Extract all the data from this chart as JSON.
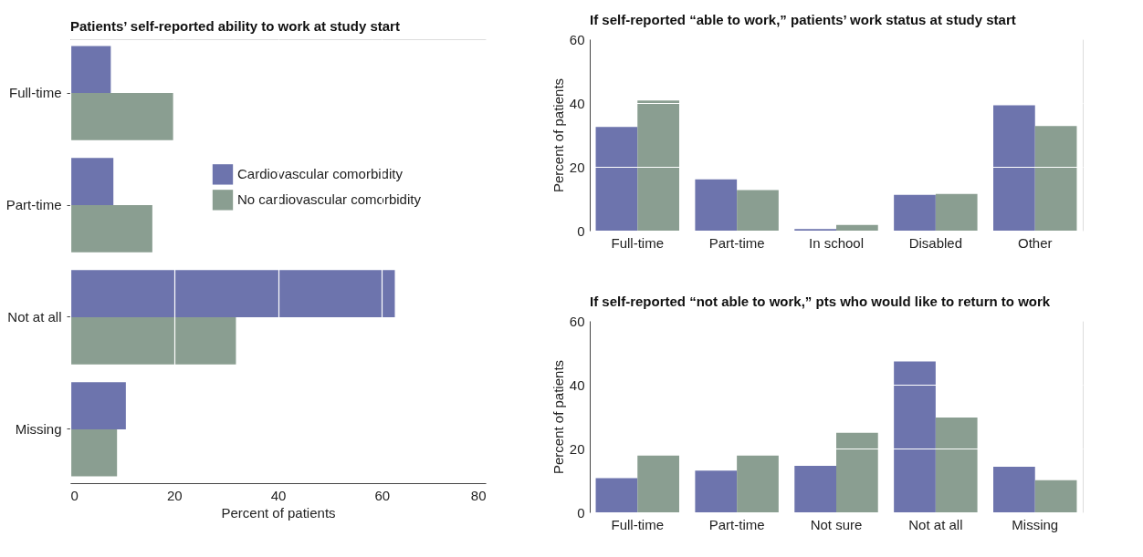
{
  "chart_data": [
    {
      "type": "bar",
      "orientation": "horizontal",
      "title": "Patients’ self-reported ability to work at study start",
      "xlabel": "Percent of patients",
      "categories": [
        "Full-time",
        "Part-time",
        "Not at all",
        "Missing"
      ],
      "xlim": [
        0,
        80
      ],
      "xticks": [
        0,
        20,
        40,
        60,
        80
      ],
      "grid": true,
      "legend": "top right",
      "series": [
        {
          "name": "Cardiovascular comorbidity",
          "color": "#6d74ad",
          "values": [
            7.8,
            8.3,
            62.5,
            10.7
          ]
        },
        {
          "name": "No cardiovascular comorbidity",
          "color": "#8a9e91",
          "values": [
            19.8,
            15.8,
            31.9,
            9.0
          ]
        }
      ]
    },
    {
      "type": "bar",
      "title": "If self-reported “able to work,” patients’ work status at study start",
      "ylabel": "Percent of patients",
      "categories": [
        "Full-time",
        "Part-time",
        "In school",
        "Disabled",
        "Other"
      ],
      "ylim": [
        0,
        60
      ],
      "yticks": [
        0,
        20,
        40,
        60
      ],
      "grid": true,
      "series": [
        {
          "color": "#6d74ad",
          "values": [
            32.5,
            16.1,
            0.5,
            11.2,
            39.3
          ]
        },
        {
          "color": "#8a9e91",
          "values": [
            40.8,
            12.7,
            1.8,
            11.5,
            32.8
          ]
        }
      ]
    },
    {
      "type": "bar",
      "title": "If self-reported “not able to work,” pts who would like to return to work",
      "ylabel": "Percent of patients",
      "categories": [
        "Full-time",
        "Part-time",
        "Not sure",
        "Not at all",
        "Missing"
      ],
      "ylim": [
        0,
        60
      ],
      "yticks": [
        0,
        20,
        40,
        60
      ],
      "grid": true,
      "series": [
        {
          "color": "#6d74ad",
          "values": [
            10.7,
            13.1,
            14.6,
            47.3,
            14.3
          ]
        },
        {
          "color": "#8a9e91",
          "values": [
            17.8,
            17.8,
            24.9,
            29.7,
            10.1
          ]
        }
      ]
    }
  ]
}
